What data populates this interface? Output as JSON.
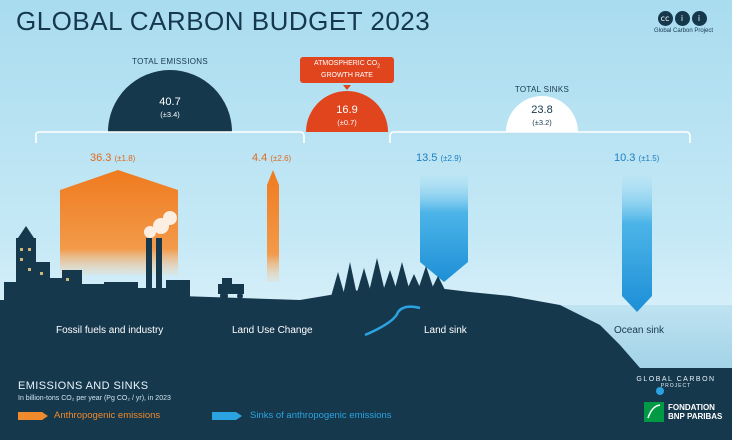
{
  "title": "GLOBAL CARBON BUDGET 2023",
  "license": {
    "icons": [
      "cc-icon",
      "by-icon",
      "person-icon"
    ],
    "glyphs": [
      "cc",
      "i",
      "i"
    ],
    "label": "Global Carbon Project"
  },
  "total_emissions": {
    "label": "TOTAL EMISSIONS",
    "value": "40.7",
    "uncertainty": "(±3.4)"
  },
  "atmospheric": {
    "label_line1": "ATMOSPHERIC CO",
    "label_sub": "2",
    "label_line2": "GROWTH RATE",
    "value": "16.9",
    "uncertainty": "(±0.7)"
  },
  "total_sinks": {
    "label": "TOTAL SINKS",
    "value": "23.8",
    "uncertainty": "(±3.2)"
  },
  "fluxes": {
    "fossil": {
      "value": "36.3",
      "uncertainty": "(±1.8)",
      "label": "Fossil fuels and industry"
    },
    "land_use": {
      "value": "4.4",
      "uncertainty": "(±2.6)",
      "label": "Land Use Change"
    },
    "land_sink": {
      "value": "13.5",
      "uncertainty": "(±2.9)",
      "label": "Land sink"
    },
    "ocean_sink": {
      "value": "10.3",
      "uncertainty": "(±1.5)",
      "label": "Ocean sink"
    }
  },
  "legend": {
    "title": "EMISSIONS AND SINKS",
    "subtitle": "In billion-tons CO₂ per year (Pg CO₂ / yr), in 2023",
    "anthropogenic": "Anthropogenic emissions",
    "sinks": "Sinks of anthropogenic emissions"
  },
  "logos": {
    "gcp": "GLOBAL CARBON",
    "gcp_line2": "PROJECT",
    "bnp_line1": "FONDATION",
    "bnp_line2": "BNP PARIBAS"
  },
  "colors": {
    "navy": "#16384d",
    "orange": "#ef8a2d",
    "red": "#e0451e",
    "blue": "#2aa3e0",
    "sky": "#bfe6f5"
  }
}
